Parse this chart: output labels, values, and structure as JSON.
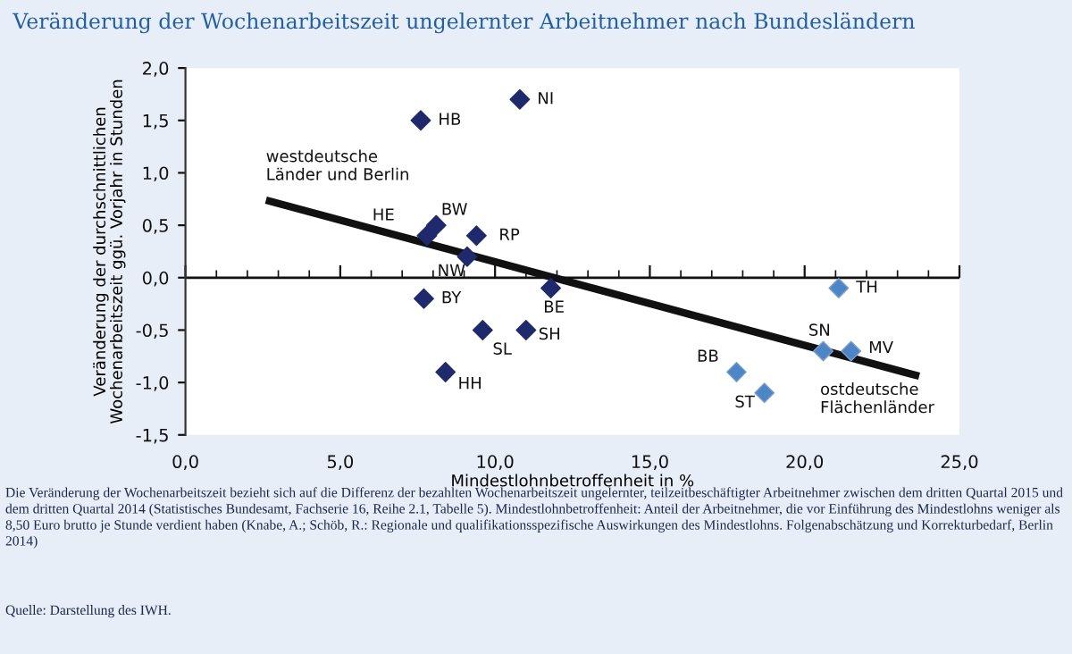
{
  "chart_data": {
    "type": "scatter",
    "title": "Veränderung der Wochenarbeitszeit ungelernter Arbeitnehmer nach Bundesländern",
    "xlabel": "Mindestlohnbetroffenheit in %",
    "ylabel": "Veränderung der durchschnittlichen\nWochenarbeitszeit ggü. Vorjahr in Stunden",
    "xlim": [
      0,
      25
    ],
    "ylim": [
      -1.5,
      2.0
    ],
    "xticks": [
      {
        "value": 0,
        "label": "0,0"
      },
      {
        "value": 5,
        "label": "5,0"
      },
      {
        "value": 10,
        "label": "10,0"
      },
      {
        "value": 15,
        "label": "15,0"
      },
      {
        "value": 20,
        "label": "20,0"
      },
      {
        "value": 25,
        "label": "25,0"
      }
    ],
    "yticks": [
      {
        "value": -1.5,
        "label": "-1,5"
      },
      {
        "value": -1,
        "label": "-1,0"
      },
      {
        "value": -0.5,
        "label": "-0,5"
      },
      {
        "value": 0,
        "label": "0,0"
      },
      {
        "value": 0.5,
        "label": "0,5"
      },
      {
        "value": 1,
        "label": "1,0"
      },
      {
        "value": 1.5,
        "label": "1,5"
      },
      {
        "value": 2,
        "label": "2,0"
      }
    ],
    "grid": false,
    "legend": false,
    "ref_lines": [
      {
        "axis": "y",
        "value": 0,
        "color": "#111111"
      }
    ],
    "marker": "diamond",
    "series": [
      {
        "name": "westdeutsche Länder und Berlin",
        "color": "#1f2a6e",
        "x": [
          7.6,
          10.8,
          8.1,
          7.8,
          9.4,
          9.1,
          7.7,
          9.6,
          11.0,
          8.4,
          11.8
        ],
        "values": [
          1.5,
          1.7,
          0.5,
          0.4,
          0.4,
          0.2,
          -0.2,
          -0.5,
          -0.5,
          -0.9,
          -0.1
        ]
      },
      {
        "name": "ostdeutsche Flächenländer",
        "color": "#4a86c8",
        "x": [
          21.1,
          20.6,
          21.5,
          17.8,
          18.7
        ],
        "values": [
          -0.1,
          -0.7,
          -0.7,
          -0.9,
          -1.1
        ]
      },
      {
        "type": "line",
        "color": "#111111",
        "x": [
          2.6,
          23.7
        ],
        "values": [
          0.74,
          -0.94
        ],
        "marker": "none"
      }
    ],
    "annotations": [
      {
        "text": "HB",
        "x": 7.6,
        "y": 1.5
      },
      {
        "text": "NI",
        "x": 10.8,
        "y": 1.7
      },
      {
        "text": "BW",
        "x": 8.1,
        "y": 0.5
      },
      {
        "text": "HE",
        "x": 7.8,
        "y": 0.4
      },
      {
        "text": "RP",
        "x": 9.4,
        "y": 0.4
      },
      {
        "text": "NW",
        "x": 9.1,
        "y": 0.2
      },
      {
        "text": "BY",
        "x": 7.7,
        "y": -0.2
      },
      {
        "text": "SL",
        "x": 9.6,
        "y": -0.5
      },
      {
        "text": "SH",
        "x": 11.0,
        "y": -0.5
      },
      {
        "text": "HH",
        "x": 8.4,
        "y": -0.9
      },
      {
        "text": "BE",
        "x": 11.8,
        "y": -0.1
      },
      {
        "text": "TH",
        "x": 21.1,
        "y": -0.1
      },
      {
        "text": "SN",
        "x": 20.6,
        "y": -0.7
      },
      {
        "text": "MV",
        "x": 21.5,
        "y": -0.7
      },
      {
        "text": "BB",
        "x": 17.8,
        "y": -0.9
      },
      {
        "text": "ST",
        "x": 18.7,
        "y": -1.1
      },
      "Die Veränderung der Wochenarbeitszeit bezieht sich auf die Differenz der bezahlten Wochenarbeitszeit ungelernter, teilzeitbeschäftigter Arbeitnehmer zwischen dem dritten Quartal 2015 und dem dritten Quartal 2014 (Statistisches Bundesamt, Fachserie 16, Reihe 2.1, Tabelle 5). Mindestlohnbetroffenheit: Anteil der Arbeitnehmer, die vor Einführung des Mindestlohns weniger als 8,50 Euro brutto je Stunde verdient haben (Knabe, A.; Schöb, R.: Regionale und qualifikationsspezifische Auswirkungen des Mindestlohns. Folgenabschätzung und Korrekturbedarf, Berlin 2014)",
      "Quelle: Darstellung des IWH."
    ]
  }
}
